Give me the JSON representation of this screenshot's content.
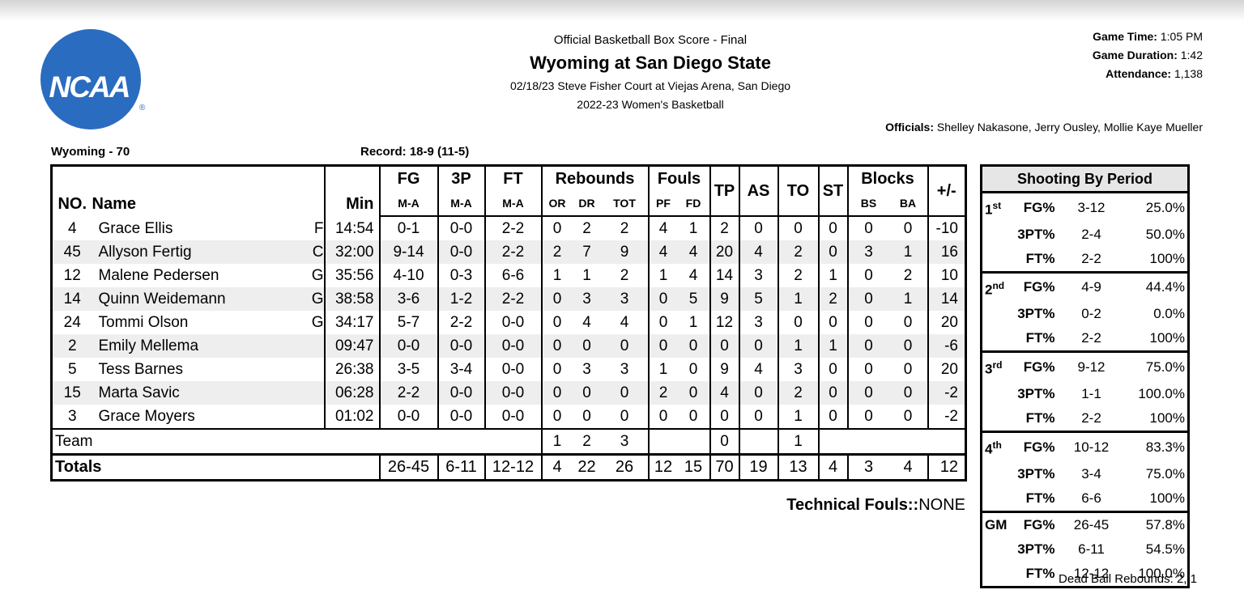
{
  "logo": {
    "text": "NCAA",
    "mark": "®"
  },
  "header": {
    "subtitle": "Official Basketball Box Score - Final",
    "title": "Wyoming at San Diego State",
    "venue": "02/18/23 Steve Fisher Court at Viejas Arena, San Diego",
    "season": "2022-23 Women's Basketball"
  },
  "game_info": [
    {
      "label": "Game Time:",
      "value": "1:05 PM"
    },
    {
      "label": "Game Duration:",
      "value": "1:42"
    },
    {
      "label": "Attendance:",
      "value": "1,138"
    }
  ],
  "officials": {
    "label": "Officials:",
    "value": "Shelley Nakasone, Jerry Ousley, Mollie Kaye Mueller"
  },
  "team": {
    "name": "Wyoming - 70",
    "record": "Record: 18-9 (11-5)"
  },
  "table": {
    "headers_top": [
      "FG",
      "3P",
      "FT",
      "Rebounds",
      "Fouls",
      "TP",
      "AS",
      "TO",
      "ST",
      "Blocks",
      "+/-"
    ],
    "headers_bottom": [
      "NO.",
      "Name",
      "Min",
      "M-A",
      "M-A",
      "M-A",
      "OR",
      "DR",
      "TOT",
      "PF",
      "FD",
      "BS",
      "BA"
    ],
    "rows": [
      [
        "4",
        "Grace Ellis",
        "F",
        "14:54",
        "0-1",
        "0-0",
        "2-2",
        "0",
        "2",
        "2",
        "4",
        "1",
        "2",
        "0",
        "0",
        "0",
        "0",
        "0",
        "-10"
      ],
      [
        "45",
        "Allyson Fertig",
        "C",
        "32:00",
        "9-14",
        "0-0",
        "2-2",
        "2",
        "7",
        "9",
        "4",
        "4",
        "20",
        "4",
        "2",
        "0",
        "3",
        "1",
        "16"
      ],
      [
        "12",
        "Malene Pedersen",
        "G",
        "35:56",
        "4-10",
        "0-3",
        "6-6",
        "1",
        "1",
        "2",
        "1",
        "4",
        "14",
        "3",
        "2",
        "1",
        "0",
        "2",
        "10"
      ],
      [
        "14",
        "Quinn Weidemann",
        "G",
        "38:58",
        "3-6",
        "1-2",
        "2-2",
        "0",
        "3",
        "3",
        "0",
        "5",
        "9",
        "5",
        "1",
        "2",
        "0",
        "1",
        "14"
      ],
      [
        "24",
        "Tommi Olson",
        "G",
        "34:17",
        "5-7",
        "2-2",
        "0-0",
        "0",
        "4",
        "4",
        "0",
        "1",
        "12",
        "3",
        "0",
        "0",
        "0",
        "0",
        "20"
      ],
      [
        "2",
        "Emily Mellema",
        null,
        "09:47",
        "0-0",
        "0-0",
        "0-0",
        "0",
        "0",
        "0",
        "0",
        "0",
        "0",
        "0",
        "1",
        "1",
        "0",
        "0",
        "-6"
      ],
      [
        "5",
        "Tess Barnes",
        null,
        "26:38",
        "3-5",
        "3-4",
        "0-0",
        "0",
        "3",
        "3",
        "1",
        "0",
        "9",
        "4",
        "3",
        "0",
        "0",
        "0",
        "20"
      ],
      [
        "15",
        "Marta Savic",
        null,
        "06:28",
        "2-2",
        "0-0",
        "0-0",
        "0",
        "0",
        "0",
        "2",
        "0",
        "4",
        "0",
        "2",
        "0",
        "0",
        "0",
        "-2"
      ],
      [
        "3",
        "Grace Moyers",
        null,
        "01:02",
        "0-0",
        "0-0",
        "0-0",
        "0",
        "0",
        "0",
        "0",
        "0",
        "0",
        "0",
        "1",
        "0",
        "0",
        "0",
        "-2"
      ]
    ],
    "team_row": {
      "label": "Team",
      "or": "1",
      "dr": "2",
      "tot": "3",
      "tp": "0",
      "to": "1"
    },
    "totals": {
      "label": "Totals",
      "cells": [
        "26-45",
        "6-11",
        "12-12",
        "4",
        "22",
        "26",
        "12",
        "15",
        "70",
        "19",
        "13",
        "4",
        "3",
        "4",
        "12"
      ]
    }
  },
  "technical_fouls": {
    "label": "Technical Fouls::",
    "value": "NONE"
  },
  "shooting": {
    "title": "Shooting By Period",
    "periods": [
      {
        "number": "1",
        "suffix": "st",
        "rows": [
          [
            "FG%",
            "3-12",
            "25.0%"
          ],
          [
            "3PT%",
            "2-4",
            "50.0%"
          ],
          [
            "FT%",
            "2-2",
            "100%"
          ]
        ]
      },
      {
        "number": "2",
        "suffix": "nd",
        "rows": [
          [
            "FG%",
            "4-9",
            "44.4%"
          ],
          [
            "3PT%",
            "0-2",
            "0.0%"
          ],
          [
            "FT%",
            "2-2",
            "100%"
          ]
        ]
      },
      {
        "number": "3",
        "suffix": "rd",
        "rows": [
          [
            "FG%",
            "9-12",
            "75.0%"
          ],
          [
            "3PT%",
            "1-1",
            "100.0%"
          ],
          [
            "FT%",
            "2-2",
            "100%"
          ]
        ]
      },
      {
        "number": "4",
        "suffix": "th",
        "rows": [
          [
            "FG%",
            "10-12",
            "83.3%"
          ],
          [
            "3PT%",
            "3-4",
            "75.0%"
          ],
          [
            "FT%",
            "6-6",
            "100%"
          ]
        ]
      },
      {
        "number": "GM",
        "suffix": null,
        "rows": [
          [
            "FG%",
            "26-45",
            "57.8%"
          ],
          [
            "3PT%",
            "6-11",
            "54.5%"
          ],
          [
            "FT%",
            "12-12",
            "100.0%"
          ]
        ]
      }
    ]
  },
  "dead_ball": {
    "label": "Dead Ball Rebounds:",
    "value": "2, 1"
  }
}
